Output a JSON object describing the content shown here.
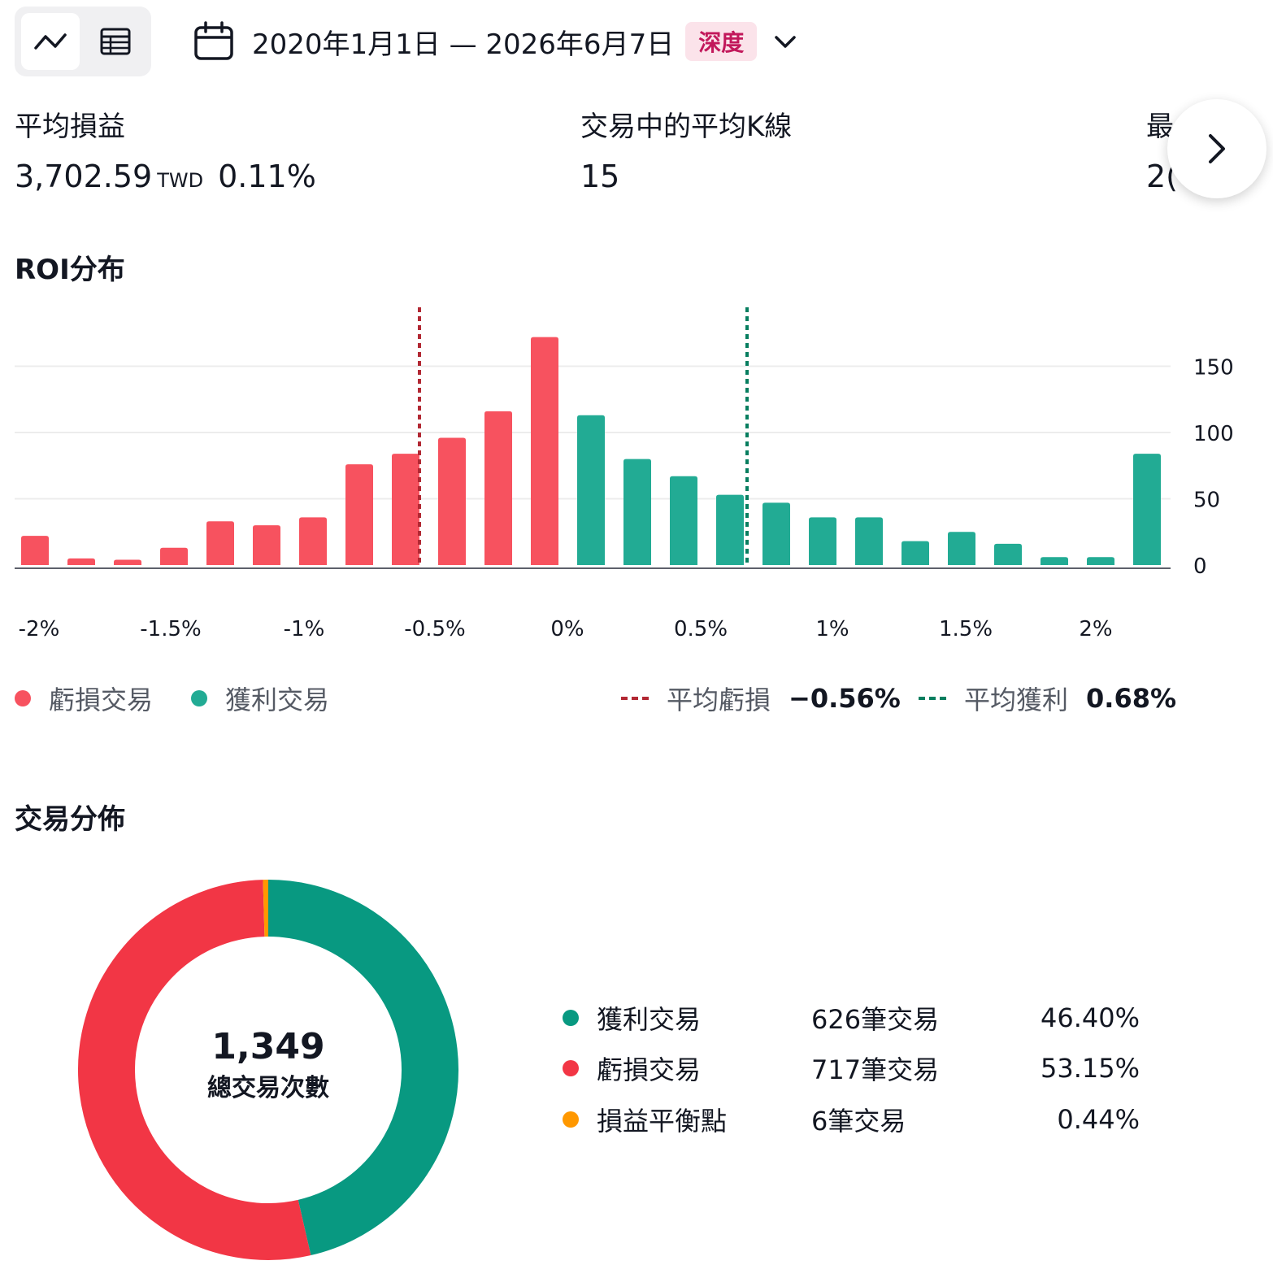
{
  "toolbar": {
    "date_range": "2020年1月1日 — 2026年6月7日",
    "badge": "深度"
  },
  "metrics": [
    {
      "label": "平均損益",
      "value": "3,702.59",
      "unit": "TWD",
      "percent": "0.11%"
    },
    {
      "label": "交易中的平均K線",
      "value": "15"
    },
    {
      "label": "最",
      "value": "2("
    }
  ],
  "roi": {
    "title": "ROI分布",
    "legend": {
      "loss_label": "虧損交易",
      "profit_label": "獲利交易",
      "avg_loss_label": "平均虧損",
      "avg_loss_value": "−0.56%",
      "avg_profit_label": "平均獲利",
      "avg_profit_value": "0.68%"
    },
    "colors": {
      "loss": "#f7525f",
      "profit": "#22ab94",
      "avg_loss_line": "#b22833",
      "avg_profit_line": "#067e5f"
    }
  },
  "chart_data": {
    "type": "bar",
    "x": [
      -2.2,
      -2.0,
      -1.8,
      -1.6,
      -1.4,
      -1.2,
      -1.0,
      -0.8,
      -0.6,
      -0.4,
      -0.2,
      0.0,
      0.2,
      0.4,
      0.6,
      0.8,
      1.0,
      1.2,
      1.4,
      1.6,
      1.8,
      2.0,
      2.2,
      2.4,
      2.6
    ],
    "values": [
      22,
      5,
      4,
      13,
      33,
      30,
      36,
      76,
      84,
      96,
      116,
      172,
      113,
      80,
      67,
      53,
      47,
      36,
      36,
      18,
      25,
      16,
      6,
      6,
      84
    ],
    "series_by_bar": [
      "loss",
      "loss",
      "loss",
      "loss",
      "loss",
      "loss",
      "loss",
      "loss",
      "loss",
      "loss",
      "loss",
      "loss",
      "profit",
      "profit",
      "profit",
      "profit",
      "profit",
      "profit",
      "profit",
      "profit",
      "profit",
      "profit",
      "profit",
      "profit",
      "profit"
    ],
    "xlim": [
      -2.3,
      2.7
    ],
    "ylim": [
      0,
      200
    ],
    "x_ticks": [
      {
        "value": -2.0,
        "label": "-2%"
      },
      {
        "value": -1.5,
        "label": "-1.5%"
      },
      {
        "value": -1.0,
        "label": "-1%"
      },
      {
        "value": -0.5,
        "label": "-0.5%"
      },
      {
        "value": 0.0,
        "label": "0%"
      },
      {
        "value": 0.5,
        "label": "0.5%"
      },
      {
        "value": 1.0,
        "label": "1%"
      },
      {
        "value": 1.5,
        "label": "1.5%"
      },
      {
        "value": 2.0,
        "label": "2%"
      }
    ],
    "y_ticks": [
      {
        "value": 0,
        "label": "0"
      },
      {
        "value": 50,
        "label": "50"
      },
      {
        "value": 100,
        "label": "100"
      },
      {
        "value": 150,
        "label": "150"
      }
    ],
    "avg_loss_x": -0.56,
    "avg_profit_x": 0.68,
    "grid": true
  },
  "distribution": {
    "title": "交易分佈",
    "total": "1,349",
    "total_label": "總交易次數",
    "rows": [
      {
        "label": "獲利交易",
        "count": "626筆交易",
        "percent": "46.40%",
        "color": "#089981",
        "value": 626
      },
      {
        "label": "虧損交易",
        "count": "717筆交易",
        "percent": "53.15%",
        "color": "#f23645",
        "value": 717
      },
      {
        "label": "損益平衡點",
        "count": "6筆交易",
        "percent": "0.44%",
        "color": "#ff9800",
        "value": 6
      }
    ]
  }
}
